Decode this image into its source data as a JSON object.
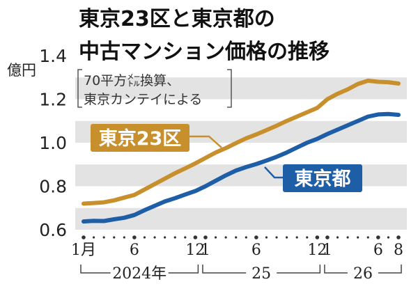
{
  "chart_data": {
    "type": "line",
    "title_lines": [
      "東京23区と東京都の",
      "中古マンション価格の推移"
    ],
    "unit_label": "億円",
    "note_lines": [
      "70平方㍍換算、",
      "東京カンテイによる"
    ],
    "y_ticks": [
      "0.6",
      "0.8",
      "1.0",
      "1.2",
      "1.4"
    ],
    "ylim": [
      0.6,
      1.4
    ],
    "x_tick_labels": [
      {
        "i": 0,
        "label": "1月"
      },
      {
        "i": 5,
        "label": "6"
      },
      {
        "i": 11,
        "label": "12"
      },
      {
        "i": 12,
        "label": "1"
      },
      {
        "i": 17,
        "label": "6"
      },
      {
        "i": 23,
        "label": "12"
      },
      {
        "i": 24,
        "label": "1"
      },
      {
        "i": 29,
        "label": "6"
      },
      {
        "i": 31,
        "label": "8"
      }
    ],
    "year_groups": [
      {
        "label": "2024年",
        "start": 0,
        "end": 11
      },
      {
        "label": "25",
        "start": 12,
        "end": 23
      },
      {
        "label": "26",
        "start": 24,
        "end": 31
      }
    ],
    "series": [
      {
        "name": "東京23区",
        "color": "#c8902d",
        "values": [
          0.72,
          0.723,
          0.726,
          0.735,
          0.748,
          0.76,
          0.785,
          0.81,
          0.835,
          0.86,
          0.882,
          0.905,
          0.93,
          0.955,
          0.975,
          0.998,
          1.02,
          1.038,
          1.058,
          1.078,
          1.1,
          1.12,
          1.14,
          1.16,
          1.2,
          1.225,
          1.245,
          1.27,
          1.285,
          1.28,
          1.278,
          1.272
        ]
      },
      {
        "name": "東京都",
        "color": "#1e5ea7",
        "values": [
          0.638,
          0.641,
          0.64,
          0.648,
          0.655,
          0.668,
          0.69,
          0.71,
          0.73,
          0.745,
          0.762,
          0.778,
          0.8,
          0.825,
          0.85,
          0.872,
          0.888,
          0.902,
          0.918,
          0.935,
          0.955,
          0.978,
          1.0,
          1.018,
          1.04,
          1.06,
          1.08,
          1.1,
          1.12,
          1.13,
          1.132,
          1.128
        ]
      }
    ]
  }
}
